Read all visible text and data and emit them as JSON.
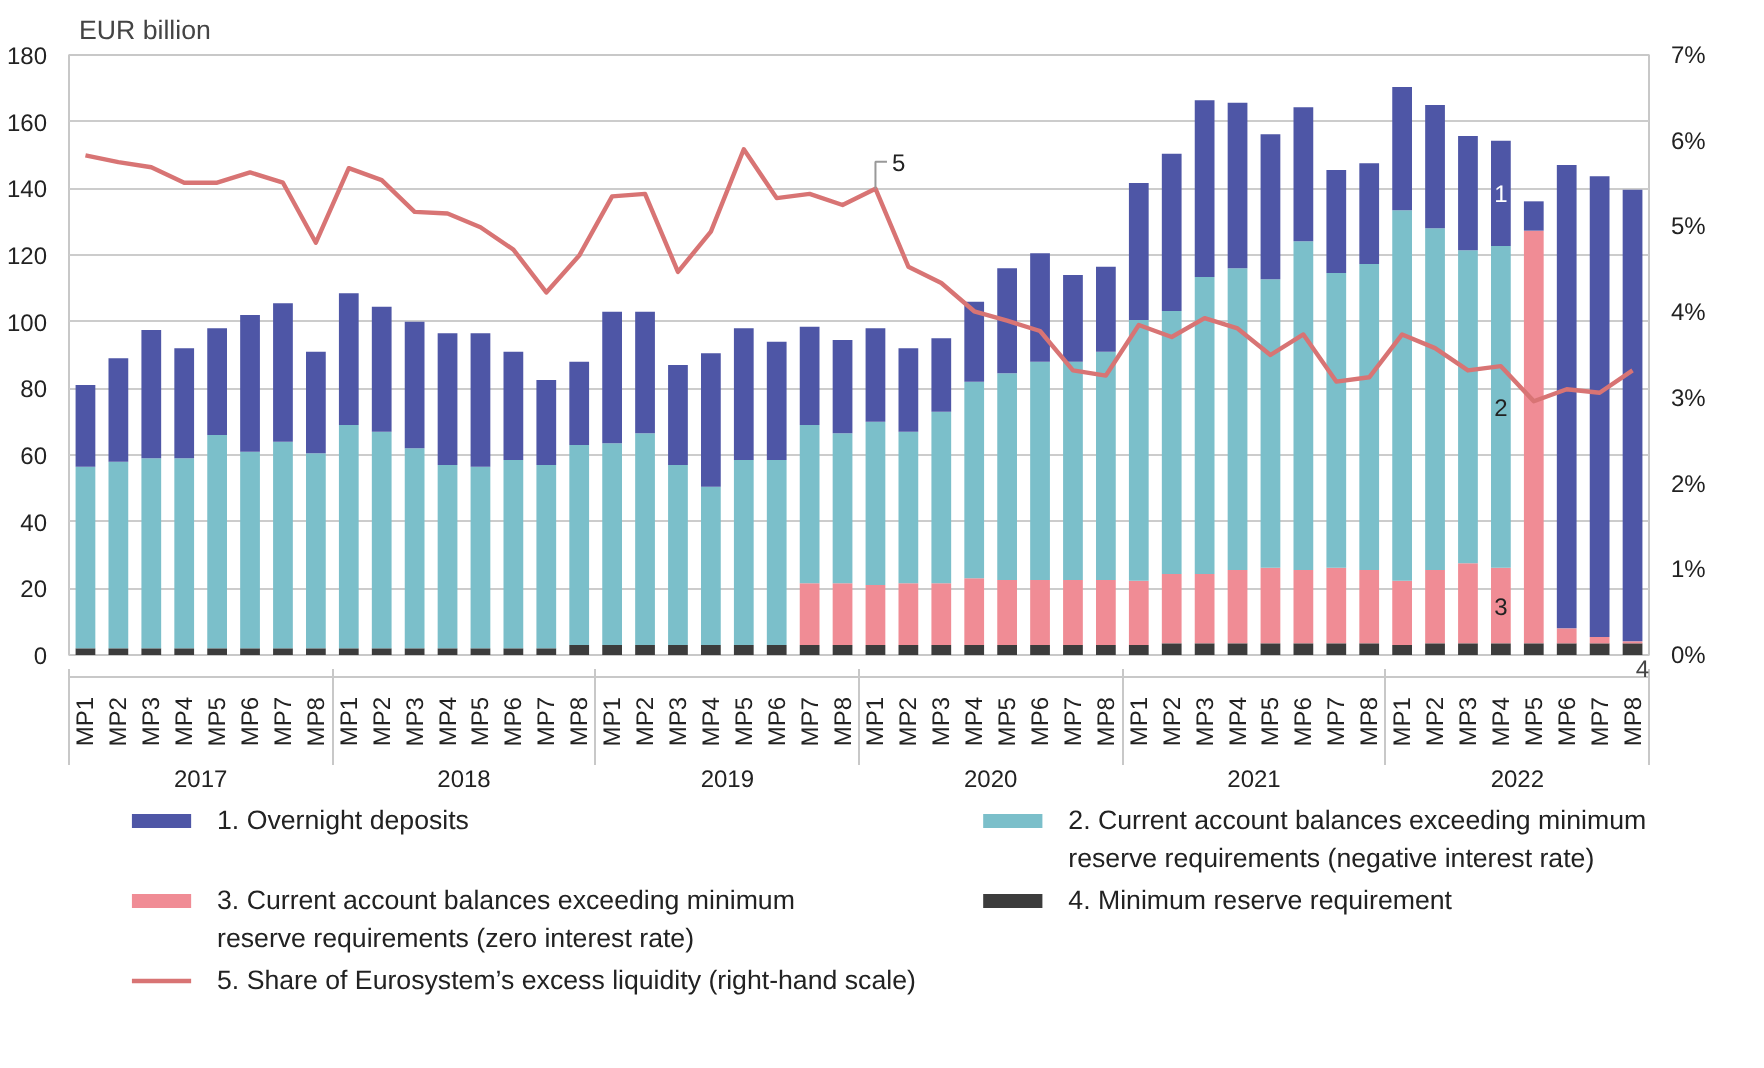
{
  "chart_data": {
    "type": "bar",
    "stacked": true,
    "ylabel": "EUR billion",
    "categories": [
      "MP1",
      "MP2",
      "MP3",
      "MP4",
      "MP5",
      "MP6",
      "MP7",
      "MP8",
      "MP1",
      "MP2",
      "MP3",
      "MP4",
      "MP5",
      "MP6",
      "MP7",
      "MP8",
      "MP1",
      "MP2",
      "MP3",
      "MP4",
      "MP5",
      "MP6",
      "MP7",
      "MP8",
      "MP1",
      "MP2",
      "MP3",
      "MP4",
      "MP5",
      "MP6",
      "MP7",
      "MP8",
      "MP1",
      "MP2",
      "MP3",
      "MP4",
      "MP5",
      "MP6",
      "MP7",
      "MP8",
      "MP1",
      "MP2",
      "MP3",
      "MP4",
      "MP5",
      "MP6",
      "MP7",
      "MP8"
    ],
    "series": [
      {
        "name": "4. Minimum reserve requirement",
        "color": "#3c3c3c",
        "values": [
          2,
          2,
          2,
          2,
          2,
          2,
          2,
          2,
          2,
          2,
          2,
          2,
          2,
          2,
          2,
          3,
          3,
          3,
          3,
          3,
          3,
          3,
          3,
          3,
          3,
          3,
          3,
          3,
          3,
          3,
          3,
          3,
          3,
          3.5,
          3.5,
          3.5,
          3.5,
          3.5,
          3.5,
          3.5,
          3,
          3.5,
          3.5,
          3.5,
          3.5,
          3.5,
          3.5,
          3.5
        ]
      },
      {
        "name": "3. Current account balances exceeding minimum reserve requirements (zero interest rate)",
        "color": "#f08c95",
        "values": [
          0,
          0,
          0,
          0,
          0,
          0,
          0,
          0,
          0,
          0,
          0,
          0,
          0,
          0,
          0,
          0,
          0,
          0,
          0,
          0,
          0,
          0,
          18.5,
          18.5,
          18,
          18.5,
          18.5,
          20,
          19.5,
          19.5,
          19.5,
          19.5,
          19.3,
          20.8,
          20.8,
          22,
          22.7,
          22,
          22.7,
          22,
          19.3,
          22,
          24,
          22.7,
          123.8,
          4.5,
          1.9,
          0.6
        ]
      },
      {
        "name": "2. Current account balances exceeding minimum reserve requirements (negative interest rate)",
        "color": "#7bbfca",
        "values": [
          54.5,
          56,
          57,
          57,
          64,
          59,
          62,
          58.5,
          67,
          65,
          60,
          55,
          54.5,
          56.5,
          55,
          60,
          60.5,
          63.5,
          54,
          47.5,
          55.5,
          55.5,
          47.5,
          45,
          49,
          45.5,
          51.5,
          59,
          62,
          65.5,
          65.5,
          68.5,
          78.2,
          78.9,
          89.1,
          90.5,
          86.5,
          98.6,
          88.4,
          91.8,
          111.1,
          102.5,
          93.9,
          96.5,
          0,
          0,
          0,
          0
        ]
      },
      {
        "name": "1. Overnight deposits",
        "color": "#4e56a6",
        "values": [
          24.5,
          31,
          38.5,
          33,
          32,
          41,
          41.5,
          30.5,
          39.5,
          37.5,
          38,
          39.5,
          40,
          32.5,
          25.5,
          25,
          39.5,
          36.5,
          30,
          40,
          39.5,
          35.5,
          29.5,
          28,
          28,
          25,
          22,
          24,
          31.5,
          32.5,
          26,
          25.5,
          41.1,
          47.2,
          53,
          49.7,
          43.5,
          40.2,
          30.9,
          30.2,
          37,
          37,
          34.3,
          31.6,
          8.8,
          139,
          138.2,
          135.5
        ]
      },
      {
        "name": "5. Share of Eurosystem’s excess liquidity (right-hand scale)",
        "type": "line",
        "axis": "y2",
        "color": "#d87474",
        "values": [
          5.83,
          5.75,
          5.69,
          5.51,
          5.51,
          5.63,
          5.51,
          4.81,
          5.68,
          5.54,
          5.17,
          5.15,
          4.99,
          4.73,
          4.23,
          4.66,
          5.35,
          5.38,
          4.47,
          4.94,
          5.9,
          5.33,
          5.38,
          5.25,
          5.44,
          4.53,
          4.34,
          4.01,
          3.9,
          3.78,
          3.32,
          3.26,
          3.85,
          3.71,
          3.93,
          3.81,
          3.5,
          3.74,
          3.19,
          3.24,
          3.74,
          3.58,
          3.32,
          3.37,
          2.96,
          3.1,
          3.06,
          3.32
        ]
      }
    ],
    "ylim": [
      0,
      180
    ],
    "yticks": [
      0,
      20,
      40,
      60,
      80,
      100,
      120,
      140,
      160,
      180
    ],
    "y2lim": [
      0,
      7
    ],
    "y2ticks": [
      {
        "value": 0,
        "label": "0%"
      },
      {
        "value": 1,
        "label": "1%"
      },
      {
        "value": 2,
        "label": "2%"
      },
      {
        "value": 3,
        "label": "3%"
      },
      {
        "value": 4,
        "label": "4%"
      },
      {
        "value": 5,
        "label": "5%"
      },
      {
        "value": 6,
        "label": "6%"
      },
      {
        "value": 7,
        "label": "7%"
      }
    ],
    "grid": "y",
    "legend": "bottom",
    "annotations": [
      "2017",
      "2018",
      "2019",
      "2020",
      "2021",
      "2022",
      "1",
      "2",
      "3",
      "4",
      "5"
    ]
  }
}
